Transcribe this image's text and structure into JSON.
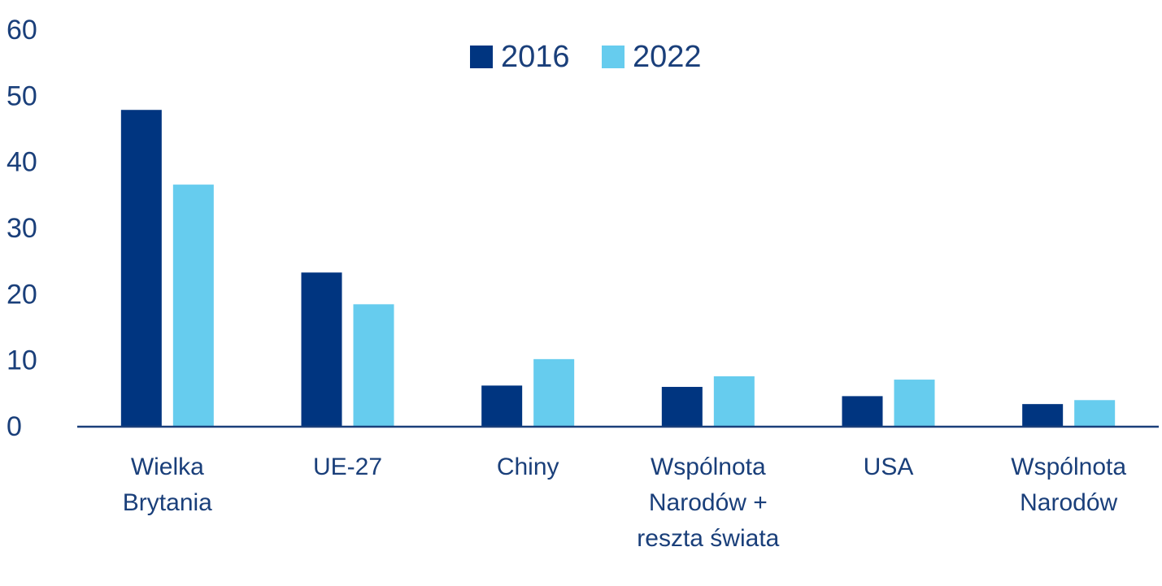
{
  "chart_data": {
    "type": "bar",
    "categories": [
      [
        "Wielka",
        "Brytania"
      ],
      [
        "UE-27"
      ],
      [
        "Chiny"
      ],
      [
        "Wspólnota",
        "Narodów +",
        "reszta świata"
      ],
      [
        "USA"
      ],
      [
        "Wspólnota",
        "Narodów"
      ]
    ],
    "series": [
      {
        "name": "2016",
        "values": [
          47.8,
          23.2,
          6.1,
          5.9,
          4.5,
          3.3
        ],
        "color": "#003580"
      },
      {
        "name": "2022",
        "values": [
          36.5,
          18.4,
          10.1,
          7.5,
          7.0,
          3.9
        ],
        "color": "#66ccee"
      }
    ],
    "ylim": [
      0,
      60
    ],
    "yticks": [
      0,
      10,
      20,
      30,
      40,
      50,
      60
    ],
    "legend": "top-center",
    "grid": false,
    "axis_color": "#1a3f7a"
  }
}
